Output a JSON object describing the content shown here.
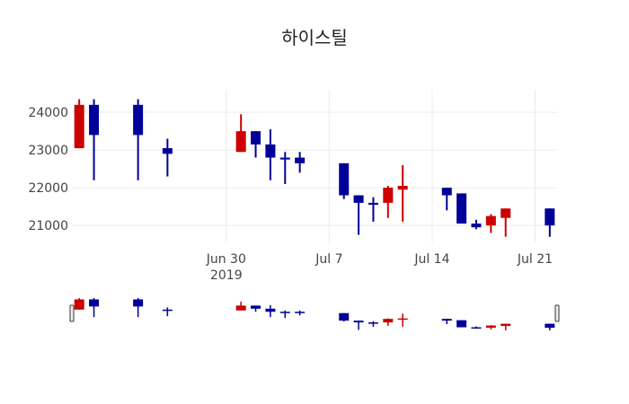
{
  "chart_data": {
    "type": "candlestick",
    "title": "하이스틸",
    "xlabel": "",
    "ylabel": "",
    "ylim": [
      20550,
      24600
    ],
    "y_ticks": [
      21000,
      22000,
      23000,
      24000
    ],
    "x_range": [
      "2019-06-20",
      "2019-07-22"
    ],
    "x_ticks": [
      {
        "date": "2019-06-30",
        "label": "Jun 30",
        "sublabel": "2019"
      },
      {
        "date": "2019-07-07",
        "label": "Jul 7",
        "sublabel": ""
      },
      {
        "date": "2019-07-14",
        "label": "Jul 14",
        "sublabel": ""
      },
      {
        "date": "2019-07-21",
        "label": "Jul 21",
        "sublabel": ""
      }
    ],
    "grid": true,
    "legend": "none",
    "rangeslider": true,
    "colors": {
      "increasing": "#cc0000",
      "decreasing": "#000099"
    },
    "candles": [
      {
        "date": "2019-06-20",
        "open": 23050,
        "high": 24350,
        "low": 23050,
        "close": 24200
      },
      {
        "date": "2019-06-21",
        "open": 24200,
        "high": 24350,
        "low": 22200,
        "close": 23400
      },
      {
        "date": "2019-06-24",
        "open": 24200,
        "high": 24350,
        "low": 22200,
        "close": 23400
      },
      {
        "date": "2019-06-26",
        "open": 23050,
        "high": 23300,
        "low": 22300,
        "close": 22900
      },
      {
        "date": "2019-07-01",
        "open": 22950,
        "high": 23950,
        "low": 22950,
        "close": 23500
      },
      {
        "date": "2019-07-02",
        "open": 23500,
        "high": 23500,
        "low": 22800,
        "close": 23150
      },
      {
        "date": "2019-07-03",
        "open": 23150,
        "high": 23550,
        "low": 22200,
        "close": 22800
      },
      {
        "date": "2019-07-04",
        "open": 22800,
        "high": 22950,
        "low": 22100,
        "close": 22750
      },
      {
        "date": "2019-07-05",
        "open": 22800,
        "high": 22950,
        "low": 22400,
        "close": 22650
      },
      {
        "date": "2019-07-08",
        "open": 22650,
        "high": 22650,
        "low": 21700,
        "close": 21800
      },
      {
        "date": "2019-07-09",
        "open": 21800,
        "high": 21800,
        "low": 20750,
        "close": 21600
      },
      {
        "date": "2019-07-10",
        "open": 21600,
        "high": 21750,
        "low": 21100,
        "close": 21550
      },
      {
        "date": "2019-07-11",
        "open": 21600,
        "high": 22050,
        "low": 21200,
        "close": 22000
      },
      {
        "date": "2019-07-12",
        "open": 21950,
        "high": 22600,
        "low": 21100,
        "close": 22050
      },
      {
        "date": "2019-07-15",
        "open": 22000,
        "high": 22000,
        "low": 21400,
        "close": 21800
      },
      {
        "date": "2019-07-16",
        "open": 21850,
        "high": 21850,
        "low": 21050,
        "close": 21050
      },
      {
        "date": "2019-07-17",
        "open": 21050,
        "high": 21150,
        "low": 20900,
        "close": 20950
      },
      {
        "date": "2019-07-18",
        "open": 21000,
        "high": 21300,
        "low": 20800,
        "close": 21250
      },
      {
        "date": "2019-07-19",
        "open": 21200,
        "high": 21450,
        "low": 20700,
        "close": 21450
      },
      {
        "date": "2019-07-22",
        "open": 21450,
        "high": 21450,
        "low": 20700,
        "close": 21000
      }
    ]
  }
}
